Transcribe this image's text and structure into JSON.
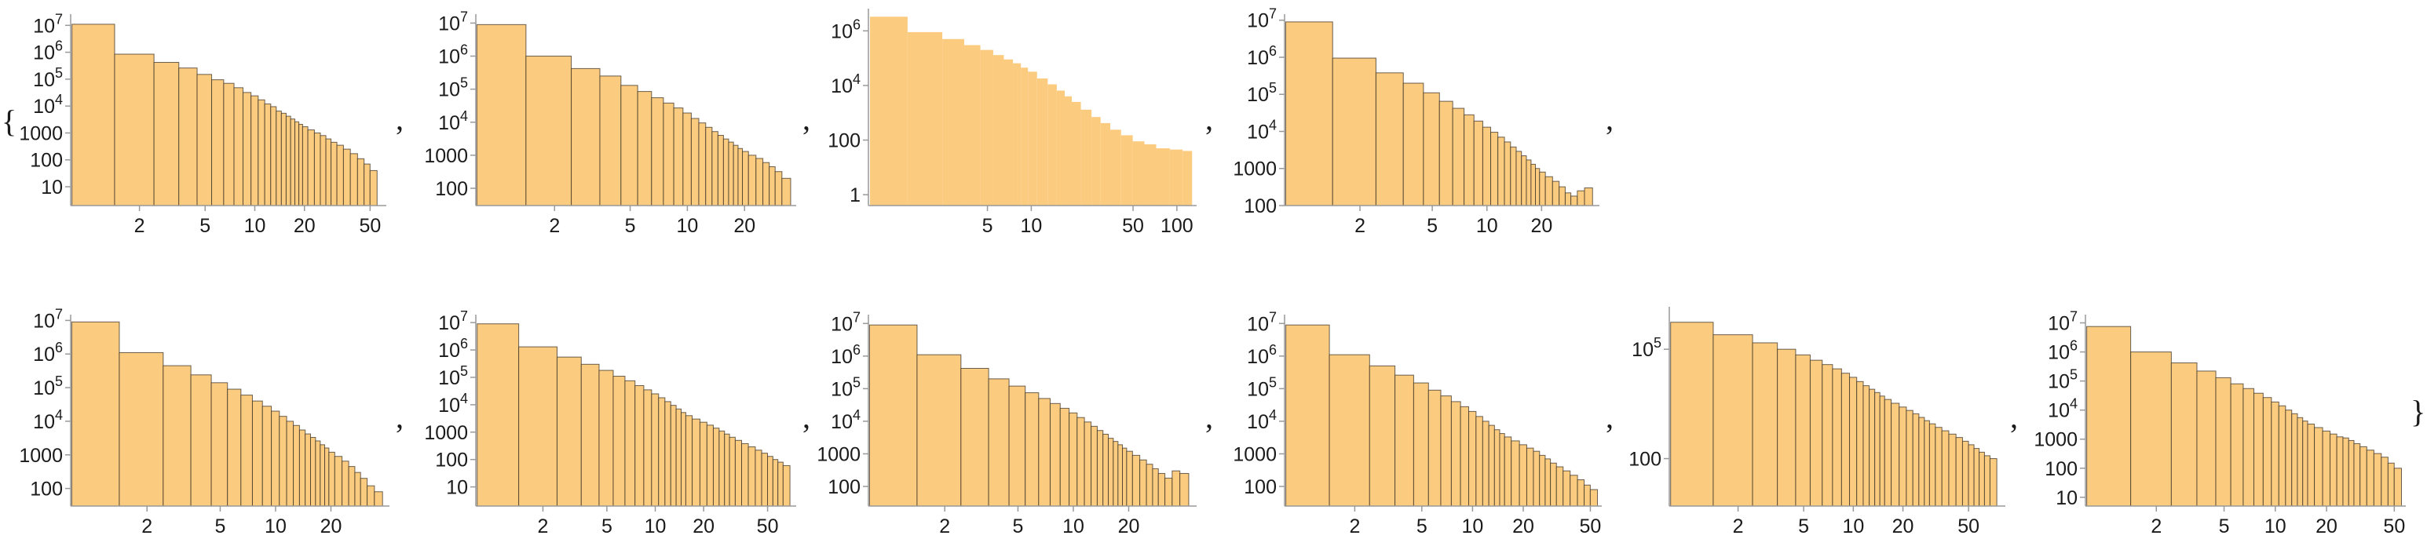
{
  "list": {
    "open_brace": "{",
    "close_brace": "}",
    "separator": ","
  },
  "style": {
    "bar_fill": "#fbcb7f",
    "bar_edge": "#3a3024",
    "axis_color": "#999999",
    "text_color": "#1a1a1a"
  },
  "chart_data": [
    {
      "type": "bar",
      "xscale": "log",
      "yscale": "log",
      "x": [
        1,
        2,
        3,
        4,
        5,
        6,
        7,
        8,
        9,
        10,
        11,
        12,
        13,
        14,
        15,
        16,
        17,
        18,
        19,
        20,
        22,
        24,
        26,
        28,
        30,
        33,
        36,
        40,
        44,
        48,
        52
      ],
      "values": [
        11000000,
        850000,
        420000,
        260000,
        150000,
        95000,
        70000,
        48000,
        32000,
        24000,
        17000,
        12000,
        9500,
        6500,
        5400,
        4200,
        3300,
        2600,
        2100,
        1700,
        1300,
        1000,
        800,
        600,
        450,
        350,
        250,
        170,
        110,
        70,
        40
      ],
      "xlim": [
        0.8,
        60
      ],
      "ylim": [
        2,
        20000000
      ],
      "xticks": [
        "2",
        "5",
        "10",
        "20",
        "50"
      ],
      "yticks": [
        "10",
        "100",
        "1000",
        "10^4",
        "10^5",
        "10^6",
        "10^7"
      ]
    },
    {
      "type": "bar",
      "xscale": "log",
      "yscale": "log",
      "x": [
        1,
        2,
        3,
        4,
        5,
        6,
        7,
        8,
        9,
        10,
        11,
        12,
        13,
        14,
        15,
        16,
        17,
        18,
        19,
        20,
        22,
        24,
        26,
        28,
        30,
        33
      ],
      "values": [
        9000000,
        1000000,
        420000,
        250000,
        130000,
        85000,
        55000,
        38000,
        27000,
        19000,
        13000,
        9500,
        7000,
        5200,
        4000,
        3100,
        2500,
        2000,
        1600,
        1300,
        1000,
        800,
        600,
        450,
        320,
        200
      ],
      "xlim": [
        0.8,
        36
      ],
      "ylim": [
        30,
        15000000
      ],
      "xticks": [
        "2",
        "5",
        "10",
        "20"
      ],
      "yticks": [
        "100",
        "1000",
        "10^4",
        "10^5",
        "10^6",
        "10^7"
      ]
    },
    {
      "type": "histogram",
      "xscale": "log",
      "yscale": "log",
      "x": [
        1,
        2,
        3,
        4,
        5,
        6,
        7,
        8,
        9,
        10,
        12,
        14,
        16,
        18,
        20,
        24,
        28,
        32,
        38,
        45,
        55,
        65,
        80,
        100,
        120
      ],
      "values": [
        3300000,
        900000,
        500000,
        300000,
        200000,
        130000,
        90000,
        65000,
        45000,
        32000,
        18000,
        11000,
        6500,
        4000,
        2500,
        1300,
        700,
        420,
        240,
        150,
        90,
        70,
        50,
        45,
        40
      ],
      "xlim": [
        0.8,
        130
      ],
      "ylim": [
        0.4,
        5000000
      ],
      "xticks": [
        "5",
        "10",
        "50",
        "100"
      ],
      "yticks": [
        "1",
        "100",
        "10^4",
        "10^6"
      ]
    },
    {
      "type": "bar",
      "xscale": "log",
      "yscale": "log",
      "x": [
        1,
        2,
        3,
        4,
        5,
        6,
        7,
        8,
        9,
        10,
        11,
        12,
        13,
        14,
        15,
        16,
        17,
        18,
        19,
        20,
        22,
        24,
        26,
        28,
        30,
        33,
        36
      ],
      "values": [
        9000000,
        950000,
        380000,
        200000,
        110000,
        65000,
        42000,
        28000,
        19000,
        13000,
        9500,
        7000,
        5200,
        3800,
        2900,
        2200,
        1700,
        1300,
        1000,
        800,
        600,
        450,
        320,
        220,
        180,
        250,
        300
      ],
      "xlim": [
        0.8,
        40
      ],
      "ylim": [
        100,
        12000000
      ],
      "xticks": [
        "2",
        "5",
        "10",
        "20"
      ],
      "yticks": [
        "100",
        "1000",
        "10^4",
        "10^5",
        "10^6",
        "10^7"
      ]
    },
    {
      "type": "bar",
      "xscale": "log",
      "yscale": "log",
      "x": [
        1,
        2,
        3,
        4,
        5,
        6,
        7,
        8,
        9,
        10,
        11,
        12,
        13,
        14,
        15,
        16,
        17,
        18,
        19,
        20,
        22,
        24,
        26,
        28,
        30,
        33,
        36
      ],
      "values": [
        9000000,
        1100000,
        450000,
        240000,
        140000,
        90000,
        60000,
        40000,
        28000,
        20000,
        14000,
        10000,
        7500,
        5500,
        4200,
        3300,
        2600,
        2000,
        1600,
        1200,
        900,
        650,
        450,
        300,
        200,
        120,
        80
      ],
      "xlim": [
        0.8,
        40
      ],
      "ylim": [
        30,
        12000000
      ],
      "xticks": [
        "2",
        "5",
        "10",
        "20"
      ],
      "yticks": [
        "100",
        "1000",
        "10^4",
        "10^5",
        "10^6",
        "10^7"
      ]
    },
    {
      "type": "bar",
      "xscale": "log",
      "yscale": "log",
      "x": [
        1,
        2,
        3,
        4,
        5,
        6,
        7,
        8,
        9,
        10,
        11,
        12,
        13,
        14,
        15,
        16,
        18,
        20,
        22,
        24,
        26,
        28,
        30,
        33,
        36,
        40,
        44,
        48,
        52,
        56,
        60,
        65
      ],
      "values": [
        9000000,
        1300000,
        550000,
        300000,
        180000,
        110000,
        75000,
        50000,
        35000,
        25000,
        18000,
        13000,
        9500,
        7000,
        5200,
        4000,
        3000,
        2300,
        1800,
        1400,
        1100,
        850,
        650,
        500,
        380,
        290,
        220,
        170,
        130,
        100,
        80,
        60
      ],
      "xlim": [
        0.8,
        72
      ],
      "ylim": [
        2,
        15000000
      ],
      "xticks": [
        "2",
        "5",
        "10",
        "20",
        "50"
      ],
      "yticks": [
        "10",
        "100",
        "1000",
        "10^4",
        "10^5",
        "10^6",
        "10^7"
      ]
    },
    {
      "type": "bar",
      "xscale": "log",
      "yscale": "log",
      "x": [
        1,
        2,
        3,
        4,
        5,
        6,
        7,
        8,
        9,
        10,
        11,
        12,
        13,
        14,
        15,
        16,
        17,
        18,
        19,
        20,
        22,
        24,
        26,
        28,
        30,
        33,
        36,
        40
      ],
      "values": [
        9000000,
        1100000,
        420000,
        200000,
        120000,
        75000,
        50000,
        35000,
        25000,
        18000,
        13000,
        9500,
        7000,
        5200,
        4000,
        3000,
        2400,
        1900,
        1500,
        1200,
        900,
        650,
        480,
        350,
        250,
        180,
        300,
        250
      ],
      "xlim": [
        0.8,
        45
      ],
      "ylim": [
        25,
        15000000
      ],
      "xticks": [
        "2",
        "5",
        "10",
        "20"
      ],
      "yticks": [
        "100",
        "1000",
        "10^4",
        "10^5",
        "10^6",
        "10^7"
      ]
    },
    {
      "type": "bar",
      "xscale": "log",
      "yscale": "log",
      "x": [
        1,
        2,
        3,
        4,
        5,
        6,
        7,
        8,
        9,
        10,
        11,
        12,
        13,
        14,
        15,
        16,
        18,
        20,
        22,
        24,
        26,
        28,
        30,
        33,
        36,
        40,
        44,
        48,
        52
      ],
      "values": [
        9000000,
        1100000,
        500000,
        260000,
        150000,
        90000,
        60000,
        40000,
        28000,
        20000,
        14000,
        10000,
        7500,
        5500,
        4200,
        3300,
        2500,
        1900,
        1500,
        1200,
        900,
        700,
        520,
        400,
        300,
        220,
        160,
        110,
        80
      ],
      "xlim": [
        0.8,
        56
      ],
      "ylim": [
        25,
        15000000
      ],
      "xticks": [
        "2",
        "5",
        "10",
        "20",
        "50"
      ],
      "yticks": [
        "100",
        "1000",
        "10^4",
        "10^5",
        "10^6",
        "10^7"
      ]
    },
    {
      "type": "bar",
      "xscale": "log",
      "yscale": "log",
      "x": [
        1,
        2,
        3,
        4,
        5,
        6,
        7,
        8,
        9,
        10,
        11,
        12,
        13,
        14,
        15,
        16,
        18,
        20,
        22,
        24,
        26,
        28,
        30,
        33,
        36,
        40,
        44,
        48,
        52,
        56,
        60,
        65,
        70
      ],
      "values": [
        550000,
        250000,
        150000,
        100000,
        70000,
        50000,
        38000,
        29000,
        22000,
        17000,
        13000,
        10000,
        8000,
        6500,
        5200,
        4200,
        3300,
        2600,
        2100,
        1700,
        1350,
        1100,
        900,
        720,
        580,
        470,
        380,
        300,
        240,
        190,
        150,
        120,
        100
      ],
      "xlim": [
        0.8,
        80
      ],
      "ylim": [
        5,
        1200000
      ],
      "xticks": [
        "2",
        "5",
        "10",
        "20",
        "50"
      ],
      "yticks": [
        "100",
        "10^5"
      ]
    },
    {
      "type": "bar",
      "xscale": "log",
      "yscale": "log",
      "x": [
        1,
        2,
        3,
        4,
        5,
        6,
        7,
        8,
        9,
        10,
        11,
        12,
        13,
        14,
        15,
        16,
        18,
        20,
        22,
        24,
        26,
        28,
        30,
        33,
        36,
        40,
        44,
        48,
        52
      ],
      "values": [
        7500000,
        1000000,
        420000,
        220000,
        130000,
        80000,
        55000,
        38000,
        27000,
        19000,
        14000,
        10000,
        7500,
        5500,
        4200,
        3300,
        2500,
        1900,
        1500,
        1200,
        1100,
        900,
        700,
        550,
        420,
        320,
        240,
        150,
        100
      ],
      "xlim": [
        0.8,
        56
      ],
      "ylim": [
        5,
        15000000
      ],
      "xticks": [
        "2",
        "5",
        "10",
        "20",
        "50"
      ],
      "yticks": [
        "10",
        "100",
        "1000",
        "10^4",
        "10^5",
        "10^6",
        "10^7"
      ]
    }
  ]
}
